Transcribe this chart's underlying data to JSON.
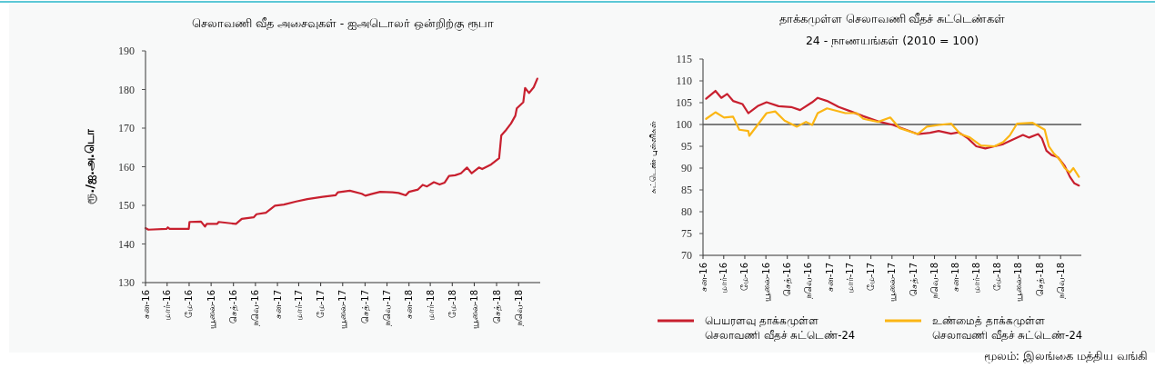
{
  "chart_data": [
    {
      "type": "line",
      "title": "செலாவணி வீத அசைவுகள் - ஐஅடொலர் ஒன்றிற்கு ரூபா",
      "ylabel": "ரூ./ஐ.அ.டொ",
      "xlim": [
        "2016-01-01",
        "2018-12-31"
      ],
      "xticks": [
        {
          "value": "2016-01-01",
          "label": "சன-16"
        },
        {
          "value": "2016-03-01",
          "label": "மார்-16"
        },
        {
          "value": "2016-05-01",
          "label": "மே-16"
        },
        {
          "value": "2016-07-01",
          "label": "யூலை-16"
        },
        {
          "value": "2016-09-01",
          "label": "செத்-16"
        },
        {
          "value": "2016-11-01",
          "label": "நவெ-16"
        },
        {
          "value": "2017-01-01",
          "label": "சன-17"
        },
        {
          "value": "2017-03-01",
          "label": "மார்-17"
        },
        {
          "value": "2017-05-01",
          "label": "மே-17"
        },
        {
          "value": "2017-07-01",
          "label": "யூலை-17"
        },
        {
          "value": "2017-09-01",
          "label": "செத்-17"
        },
        {
          "value": "2017-11-01",
          "label": "நவெ-17"
        },
        {
          "value": "2018-01-01",
          "label": "சன-18"
        },
        {
          "value": "2018-03-01",
          "label": "மார்-18"
        },
        {
          "value": "2018-05-01",
          "label": "மே-18"
        },
        {
          "value": "2018-07-01",
          "label": "யூலை-18"
        },
        {
          "value": "2018-09-01",
          "label": "செத்-18"
        },
        {
          "value": "2018-11-01",
          "label": "நவெ-18"
        }
      ],
      "ylim": [
        130,
        190
      ],
      "yticks": [
        130,
        140,
        150,
        160,
        170,
        180,
        190
      ],
      "grid": false,
      "legend": false,
      "series": [
        {
          "color": "#c8202f",
          "x": [
            "2016-01-01",
            "2016-01-09",
            "2016-02-28",
            "2016-03-03",
            "2016-03-08",
            "2016-04-30",
            "2016-05-02",
            "2016-06-03",
            "2016-06-14",
            "2016-06-19",
            "2016-07-18",
            "2016-07-22",
            "2016-09-08",
            "2016-09-24",
            "2016-10-27",
            "2016-11-04",
            "2016-11-30",
            "2016-12-25",
            "2017-01-19",
            "2017-02-22",
            "2017-03-25",
            "2017-05-06",
            "2017-06-11",
            "2017-06-18",
            "2017-07-21",
            "2017-08-23",
            "2017-09-02",
            "2017-09-18",
            "2017-10-13",
            "2017-11-16",
            "2017-12-03",
            "2017-12-23",
            "2018-01-01",
            "2018-01-26",
            "2018-02-08",
            "2018-02-20",
            "2018-03-11",
            "2018-03-27",
            "2018-04-10",
            "2018-04-22",
            "2018-05-09",
            "2018-05-25",
            "2018-06-11",
            "2018-06-24",
            "2018-07-14",
            "2018-07-23",
            "2018-08-17",
            "2018-09-08",
            "2018-09-14",
            "2018-09-28",
            "2018-10-11",
            "2018-10-23",
            "2018-10-27",
            "2018-11-14",
            "2018-11-19",
            "2018-11-30",
            "2018-12-13",
            "2018-12-23"
          ],
          "values": [
            144.1,
            143.7,
            143.9,
            144.3,
            143.9,
            143.9,
            145.7,
            145.8,
            144.5,
            145.2,
            145.2,
            145.7,
            145.2,
            146.5,
            146.9,
            147.7,
            148.1,
            149.9,
            150.2,
            151.0,
            151.6,
            152.2,
            152.6,
            153.4,
            153.8,
            153.0,
            152.5,
            152.9,
            153.5,
            153.4,
            153.2,
            152.6,
            153.5,
            154.1,
            155.3,
            154.9,
            156.0,
            155.4,
            155.9,
            157.6,
            157.8,
            158.3,
            159.8,
            158.3,
            159.8,
            159.4,
            160.6,
            162.2,
            168.1,
            169.6,
            171.2,
            173.2,
            175.1,
            176.7,
            180.4,
            179.1,
            180.6,
            182.8
          ]
        }
      ]
    },
    {
      "type": "line",
      "title": "தாக்கமுள்ள செலாவணி வீதச் சுட்டெண்கள்",
      "subtitle": "24 - நாணயங்கள் (2010 = 100)",
      "ylabel": "சுட்டெண் புள்ளிகள்",
      "xlim": [
        "2016-01-01",
        "2018-12-31"
      ],
      "xticks": [
        {
          "value": "2016-01-01",
          "label": "சன-16"
        },
        {
          "value": "2016-03-01",
          "label": "மார்-16"
        },
        {
          "value": "2016-05-01",
          "label": "மே-16"
        },
        {
          "value": "2016-07-01",
          "label": "யூலை-16"
        },
        {
          "value": "2016-09-01",
          "label": "செத்-16"
        },
        {
          "value": "2016-11-01",
          "label": "நவெ-16"
        },
        {
          "value": "2017-01-01",
          "label": "சன-17"
        },
        {
          "value": "2017-03-01",
          "label": "மார்-17"
        },
        {
          "value": "2017-05-01",
          "label": "மே-17"
        },
        {
          "value": "2017-07-01",
          "label": "யூலை-17"
        },
        {
          "value": "2017-09-01",
          "label": "செத்-17"
        },
        {
          "value": "2017-11-01",
          "label": "நவெ-18"
        },
        {
          "value": "2018-01-01",
          "label": "சன-18"
        },
        {
          "value": "2018-03-01",
          "label": "மார்-18"
        },
        {
          "value": "2018-05-01",
          "label": "மே-18"
        },
        {
          "value": "2018-07-01",
          "label": "யூலை-18"
        },
        {
          "value": "2018-09-01",
          "label": "செத்-18"
        },
        {
          "value": "2018-11-01",
          "label": "நவெ-18"
        }
      ],
      "ylim": [
        70,
        115
      ],
      "yticks": [
        70,
        75,
        80,
        85,
        90,
        95,
        100,
        105,
        110,
        115
      ],
      "grid": false,
      "legend": "bottom",
      "ref_lines": [
        {
          "axis": "y",
          "value": 100,
          "color": "#000000"
        }
      ],
      "annotations": [
        "மூலம்: இலங்கை மத்திய வங்கி"
      ],
      "series": [
        {
          "name": "பெயரளவு தாக்கமுள்ள செலாவணி வீதச் சுட்டெண்-24",
          "color": "#c8202f",
          "x": [
            "2016-01-10",
            "2016-02-06",
            "2016-02-23",
            "2016-03-11",
            "2016-03-28",
            "2016-04-24",
            "2016-05-11",
            "2016-06-07",
            "2016-07-03",
            "2016-08-07",
            "2016-09-12",
            "2016-10-08",
            "2016-11-12",
            "2016-11-28",
            "2016-12-25",
            "2017-01-28",
            "2017-03-04",
            "2017-04-09",
            "2017-05-22",
            "2017-07-04",
            "2017-08-10",
            "2017-09-13",
            "2017-10-19",
            "2017-11-13",
            "2017-12-19",
            "2018-01-10",
            "2018-02-06",
            "2018-03-02",
            "2018-03-28",
            "2018-04-24",
            "2018-05-19",
            "2018-06-15",
            "2018-07-15",
            "2018-08-02",
            "2018-08-28",
            "2018-09-08",
            "2018-09-21",
            "2018-10-06",
            "2018-10-24",
            "2018-11-13",
            "2018-11-28",
            "2018-12-11",
            "2018-12-24"
          ],
          "values": [
            105.9,
            107.7,
            106.1,
            107.0,
            105.4,
            104.7,
            102.6,
            104.2,
            105.1,
            104.2,
            104.0,
            103.3,
            105.1,
            106.1,
            105.4,
            104.0,
            103.0,
            101.9,
            100.7,
            99.9,
            98.8,
            97.8,
            98.1,
            98.5,
            97.9,
            98.2,
            96.8,
            95.0,
            94.5,
            95.0,
            95.5,
            96.5,
            97.6,
            97.0,
            97.8,
            96.8,
            94.0,
            93.0,
            92.5,
            90.5,
            88.0,
            86.5,
            86.0
          ]
        },
        {
          "name": "உண்மைத் தாக்கமுள்ள செலாவணி வீதச் சுட்டெண்-24",
          "color": "#fbb615",
          "x": [
            "2016-01-10",
            "2016-02-06",
            "2016-03-02",
            "2016-03-28",
            "2016-04-15",
            "2016-05-11",
            "2016-05-14",
            "2016-06-07",
            "2016-07-03",
            "2016-07-28",
            "2016-08-24",
            "2016-09-29",
            "2016-10-25",
            "2016-11-12",
            "2016-11-28",
            "2016-12-25",
            "2017-02-16",
            "2017-03-21",
            "2017-04-09",
            "2017-05-22",
            "2017-06-26",
            "2017-07-22",
            "2017-09-13",
            "2017-10-10",
            "2017-11-14",
            "2017-12-19",
            "2018-01-15",
            "2018-02-10",
            "2018-03-15",
            "2018-04-24",
            "2018-05-19",
            "2018-06-07",
            "2018-06-28",
            "2018-08-11",
            "2018-09-16",
            "2018-09-28",
            "2018-10-11",
            "2018-10-29",
            "2018-11-13",
            "2018-11-28",
            "2018-12-08",
            "2018-12-24"
          ],
          "values": [
            101.3,
            102.8,
            101.6,
            101.8,
            98.8,
            98.5,
            97.4,
            99.9,
            102.6,
            103.0,
            100.9,
            99.5,
            100.6,
            99.9,
            102.6,
            103.7,
            102.6,
            102.6,
            101.3,
            100.6,
            101.6,
            99.2,
            97.8,
            99.5,
            99.9,
            100.2,
            97.8,
            97.1,
            95.2,
            95.0,
            96.0,
            97.5,
            100.2,
            100.4,
            98.8,
            95.0,
            93.5,
            92.0,
            90.0,
            89.0,
            90.0,
            88.0
          ]
        }
      ]
    }
  ]
}
